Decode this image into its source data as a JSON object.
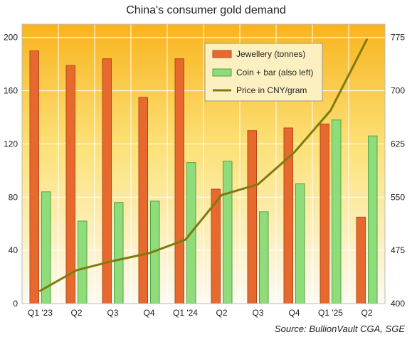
{
  "colors": {
    "jewellery": "#e8692e",
    "coin_bar": "#8fdc7a",
    "price_line": "#7f7a10",
    "grid": "#ffffff",
    "bg_top": "#f9b41e",
    "bg_bottom": "#fcfaf2"
  },
  "chart_data": {
    "type": "bar",
    "title": "China's consumer  gold demand",
    "source": "Source:  BullionVault CGA, SGE",
    "categories": [
      "Q1 '23",
      "Q2",
      "Q3",
      "Q4",
      "Q1 '24",
      "Q2",
      "Q3",
      "Q4",
      "Q1 '25",
      "Q2"
    ],
    "series": [
      {
        "name": "Jewellery (tonnes)",
        "type": "bar",
        "axis": "left",
        "values": [
          190,
          179,
          184,
          155,
          184,
          86,
          130,
          132,
          135,
          65
        ]
      },
      {
        "name": "Coin + bar (also left)",
        "type": "bar",
        "axis": "left",
        "values": [
          84,
          62,
          76,
          77,
          106,
          107,
          69,
          90,
          138,
          126
        ]
      },
      {
        "name": "Price in CNY/gram",
        "type": "line",
        "axis": "right",
        "values": [
          418,
          447,
          460,
          471,
          490,
          553,
          568,
          613,
          672,
          772
        ]
      }
    ],
    "y_left": {
      "min": 0,
      "max": 210,
      "ticks": [
        0,
        40,
        80,
        120,
        160,
        200
      ]
    },
    "y_right": {
      "min": 400,
      "max": 793.75,
      "ticks": [
        400,
        475,
        550,
        625,
        700,
        775
      ]
    },
    "legend_position": "top-center",
    "grid": true
  }
}
